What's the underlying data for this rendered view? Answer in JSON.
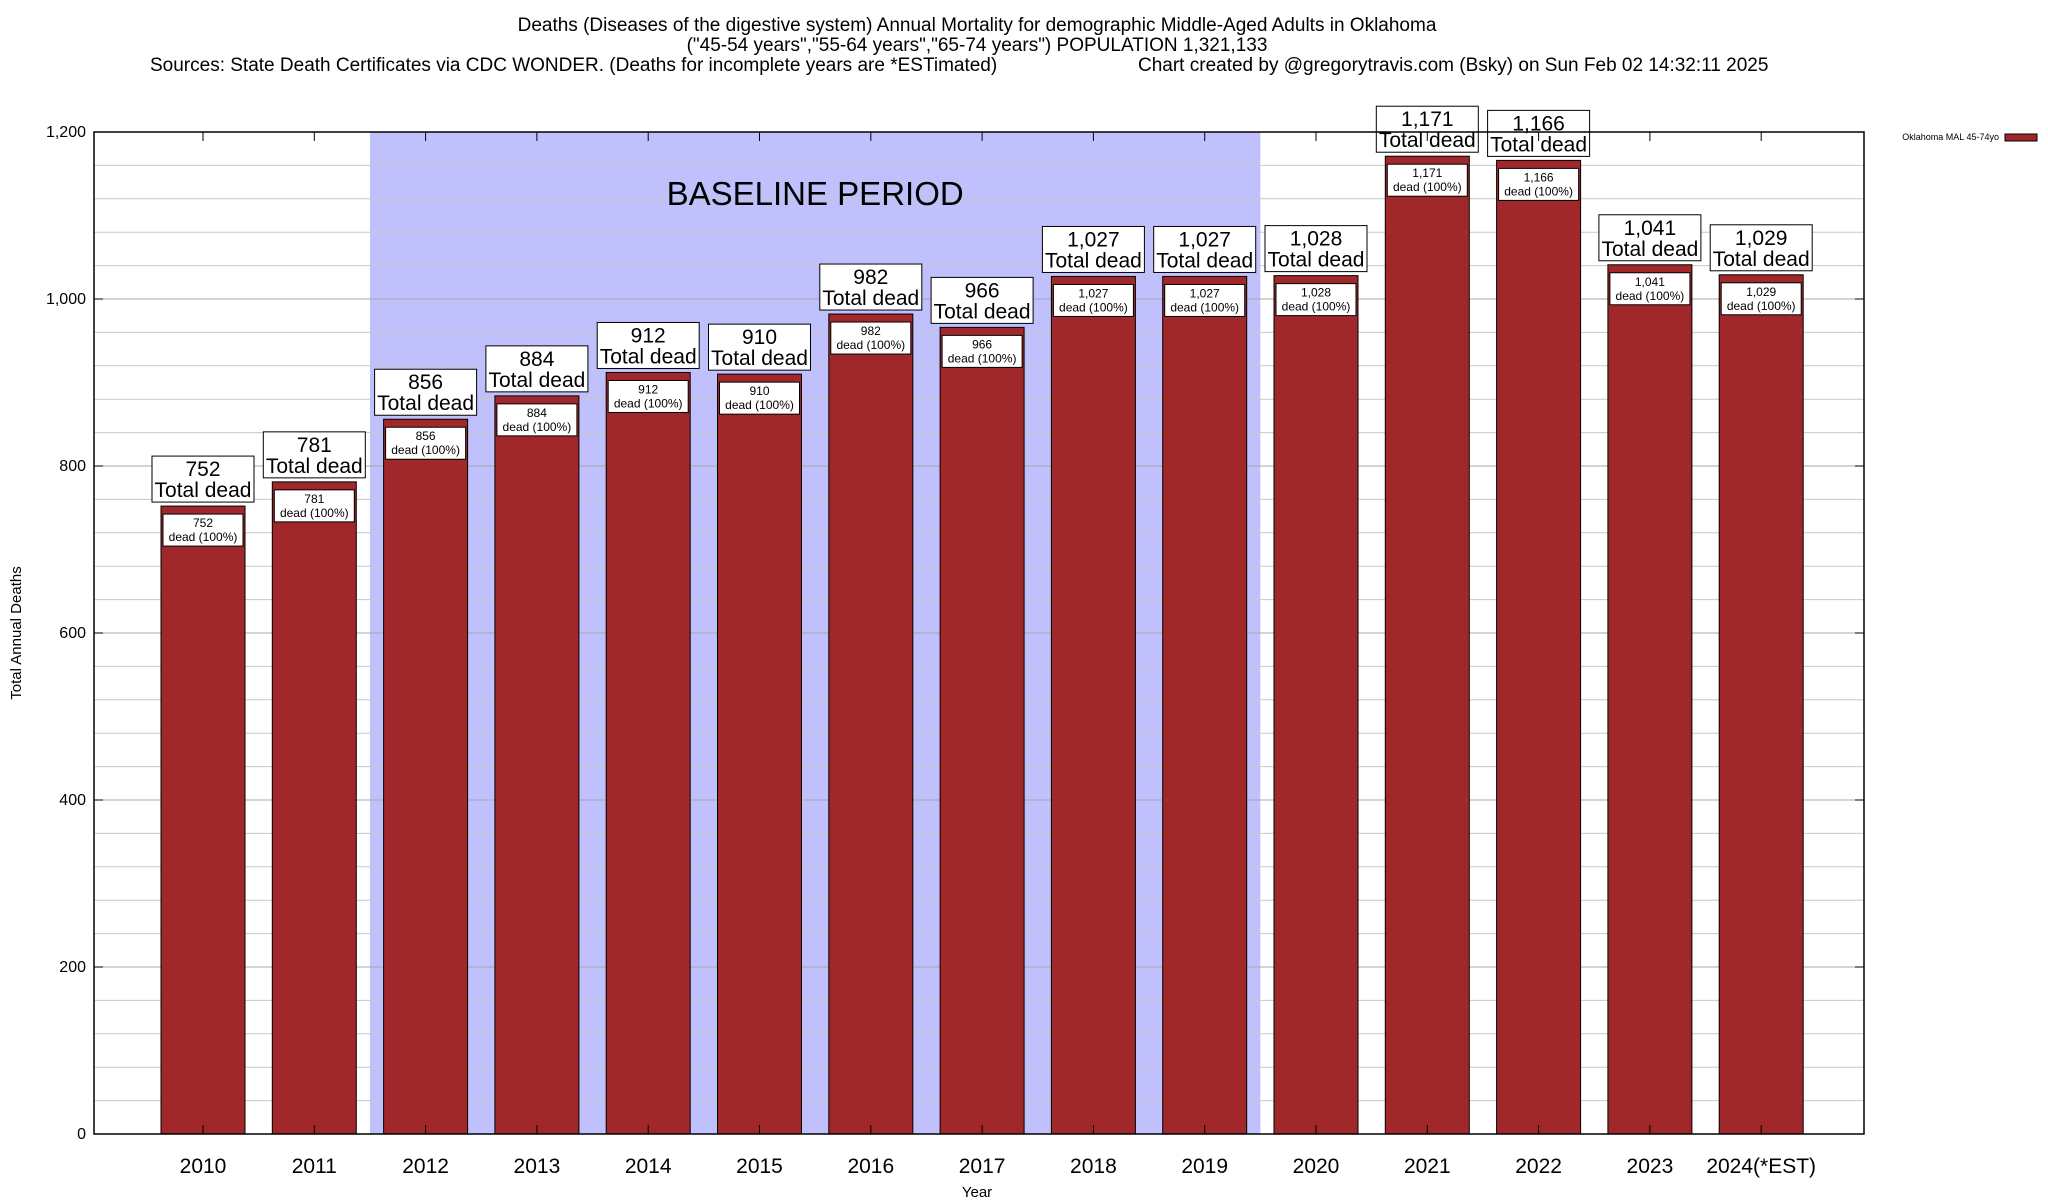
{
  "chart_data": {
    "type": "bar",
    "title_lines": [
      "Deaths (Diseases of the digestive system) Annual Mortality for demographic Middle-Aged Adults in Oklahoma",
      "(\"45-54 years\",\"55-64 years\",\"65-74 years\") POPULATION 1,321,133",
      "Sources: State Death Certificates via CDC WONDER. (Deaths for incomplete years are *ESTimated)",
      "Chart created by @gregorytravis.com (Bsky) on Sun Feb 02 14:32:11 2025"
    ],
    "xlabel": "Year",
    "ylabel": "Total Annual Deaths",
    "ylim": [
      0,
      1200
    ],
    "yticks": [
      0,
      200,
      400,
      600,
      800,
      1000,
      1200
    ],
    "ytick_labels": [
      "0",
      "200",
      "400",
      "600",
      "800",
      "1,000",
      "1,200"
    ],
    "categories": [
      "2010",
      "2011",
      "2012",
      "2013",
      "2014",
      "2015",
      "2016",
      "2017",
      "2018",
      "2019",
      "2020",
      "2021",
      "2022",
      "2023",
      "2024(*EST)"
    ],
    "series": [
      {
        "name": "Oklahoma MAL 45-74yo",
        "values": [
          752,
          781,
          856,
          884,
          912,
          910,
          982,
          966,
          1027,
          1027,
          1028,
          1171,
          1166,
          1041,
          1029
        ],
        "color": "#a0282b"
      }
    ],
    "value_labels": [
      "752",
      "781",
      "856",
      "884",
      "912",
      "910",
      "982",
      "966",
      "1,027",
      "1,027",
      "1,028",
      "1,171",
      "1,166",
      "1,041",
      "1,029"
    ],
    "total_suffix": "Total dead",
    "inner_suffix": "dead (100%)",
    "baseline_period": {
      "label": "BASELINE PERIOD",
      "from": "2012",
      "to": "2019",
      "color": "#c0c0fc"
    },
    "legend_placement": "top-right",
    "grid": true
  }
}
